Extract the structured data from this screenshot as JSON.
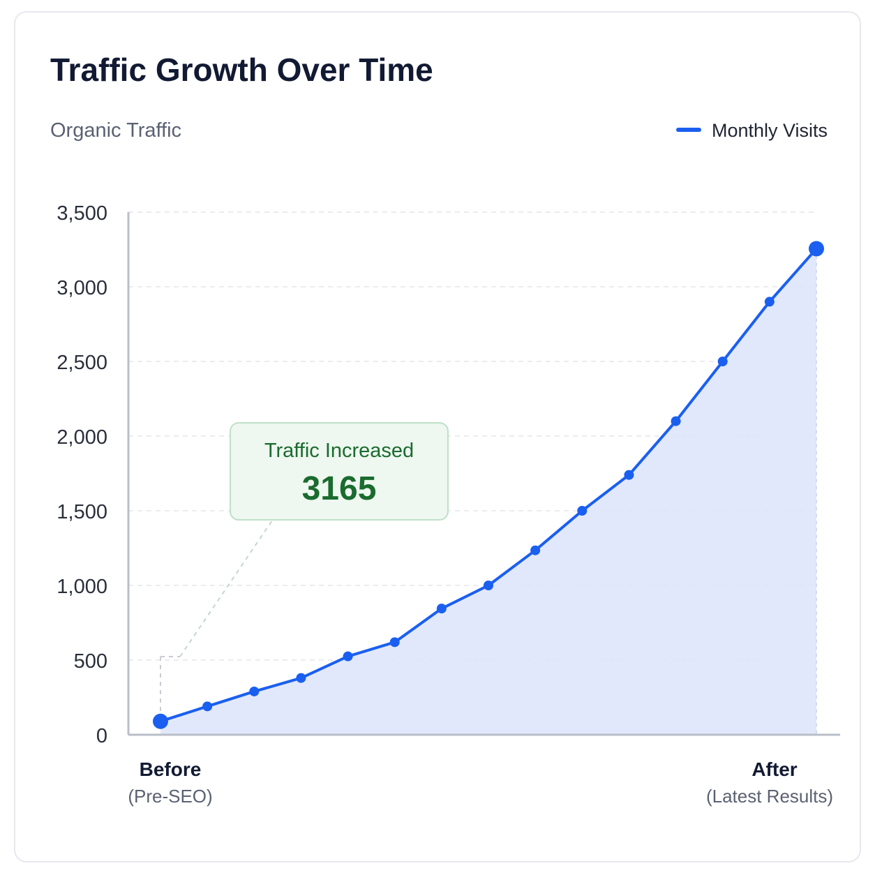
{
  "chart_data": {
    "type": "line",
    "title": "Traffic Growth Over Time",
    "ylabel": "Organic Traffic",
    "series": [
      {
        "name": "Monthly Visits",
        "values": [
          90,
          190,
          290,
          380,
          525,
          620,
          845,
          1000,
          1235,
          1500,
          1740,
          2100,
          2500,
          2900,
          3255
        ]
      }
    ],
    "x": [
      1,
      2,
      3,
      4,
      5,
      6,
      7,
      8,
      9,
      10,
      11,
      12,
      13,
      14,
      15
    ],
    "ylim": [
      0,
      3500
    ],
    "yticks": [
      0,
      500,
      1000,
      1500,
      2000,
      2500,
      3000,
      3500
    ],
    "ytick_labels": [
      "0",
      "500",
      "1,000",
      "1,500",
      "2,000",
      "2,500",
      "3,000",
      "3,500"
    ],
    "x_start_label": "Before",
    "x_start_sublabel": "(Pre-SEO)",
    "x_end_label": "After",
    "x_end_sublabel": "(Latest Results)",
    "annotation": {
      "label": "Traffic Increased",
      "value": "3165"
    },
    "grid": true,
    "legend_position": "top-right",
    "colors": {
      "line": "#1a5ff0",
      "area": "#dfe6fb",
      "grid": "#e3e6ec",
      "axis": "#b9bec8",
      "annotation_text": "#1a6b2e",
      "annotation_bg": "#eef7f0",
      "annotation_border": "#bfe0c8"
    }
  }
}
